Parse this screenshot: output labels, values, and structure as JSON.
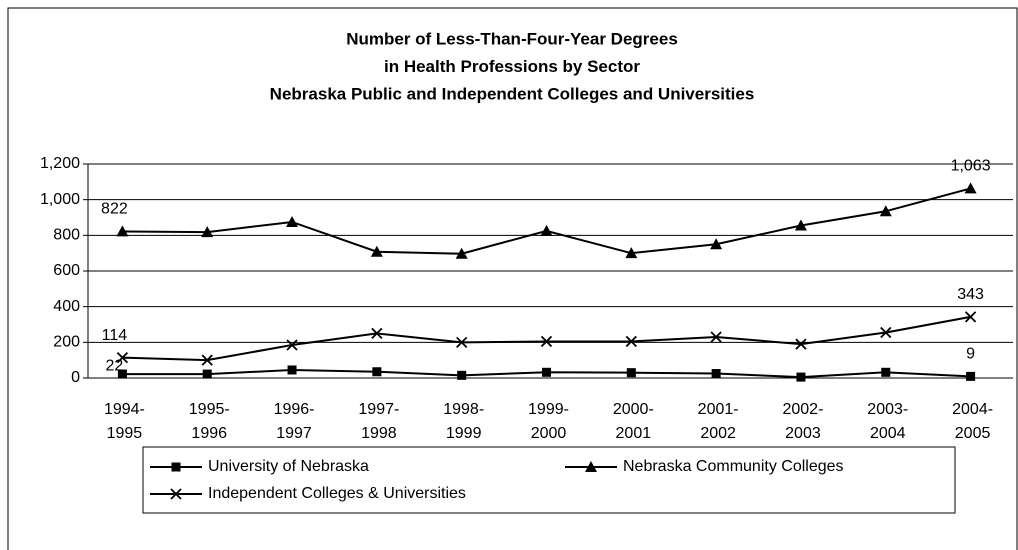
{
  "chart_data": {
    "type": "line",
    "title": [
      "Number of Less-Than-Four-Year Degrees",
      "in Health Professions by Sector",
      "Nebraska Public and Independent Colleges and Universities"
    ],
    "categories": [
      [
        "1994-",
        "1995"
      ],
      [
        "1995-",
        "1996"
      ],
      [
        "1996-",
        "1997"
      ],
      [
        "1997-",
        "1998"
      ],
      [
        "1998-",
        "1999"
      ],
      [
        "1999-",
        "2000"
      ],
      [
        "2000-",
        "2001"
      ],
      [
        "2001-",
        "2002"
      ],
      [
        "2002-",
        "2003"
      ],
      [
        "2003-",
        "2004"
      ],
      [
        "2004-",
        "2005"
      ]
    ],
    "series": [
      {
        "name": "University of Nebraska",
        "color": "#000000",
        "marker": "square",
        "values": [
          22,
          22,
          45,
          35,
          15,
          32,
          30,
          25,
          5,
          32,
          9
        ],
        "value_labels": [
          "22",
          null,
          null,
          null,
          null,
          null,
          null,
          null,
          null,
          null,
          "9"
        ]
      },
      {
        "name": "Nebraska Community Colleges",
        "color": "#000000",
        "marker": "triangle",
        "values": [
          822,
          818,
          875,
          708,
          697,
          825,
          700,
          750,
          855,
          935,
          1063
        ],
        "value_labels": [
          "822",
          null,
          null,
          null,
          null,
          null,
          null,
          null,
          null,
          null,
          "1,063"
        ]
      },
      {
        "name": "Independent Colleges & Universities",
        "color": "#000000",
        "marker": "x",
        "values": [
          114,
          100,
          185,
          250,
          200,
          205,
          205,
          230,
          190,
          255,
          343
        ],
        "value_labels": [
          "114",
          null,
          null,
          null,
          null,
          null,
          null,
          null,
          null,
          null,
          "343"
        ]
      }
    ],
    "ylim": [
      0,
      1200
    ],
    "yticks": [
      0,
      200,
      400,
      600,
      800,
      {
        "value": 1000,
        "label": "1,000"
      },
      {
        "value": 1200,
        "label": "1,200"
      }
    ],
    "grid": true
  }
}
